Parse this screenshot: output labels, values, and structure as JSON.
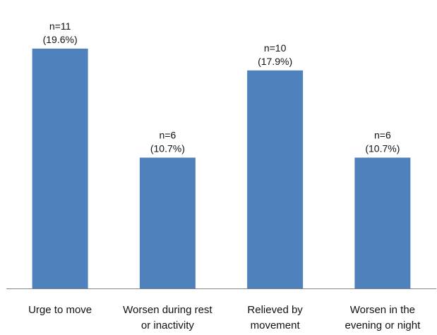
{
  "chart_data": {
    "type": "bar",
    "categories": [
      [
        "Urge to move"
      ],
      [
        "Worsen during rest",
        "or inactivity"
      ],
      [
        "Relieved by",
        "movement"
      ],
      [
        "Worsen in the",
        "evening or night"
      ]
    ],
    "values": [
      11,
      6,
      10,
      6
    ],
    "data_labels": [
      [
        "n=11",
        "(19.6%)"
      ],
      [
        "n=6",
        "(10.7%)"
      ],
      [
        "n=10",
        "(17.9%)"
      ],
      [
        "n=6",
        "(10.7%)"
      ]
    ],
    "title": "",
    "xlabel": "",
    "ylabel": "",
    "ylim": [
      0,
      12
    ],
    "grid": false,
    "legend": "none",
    "bar_color": "#4f81bd",
    "axis_color": "#868686"
  }
}
